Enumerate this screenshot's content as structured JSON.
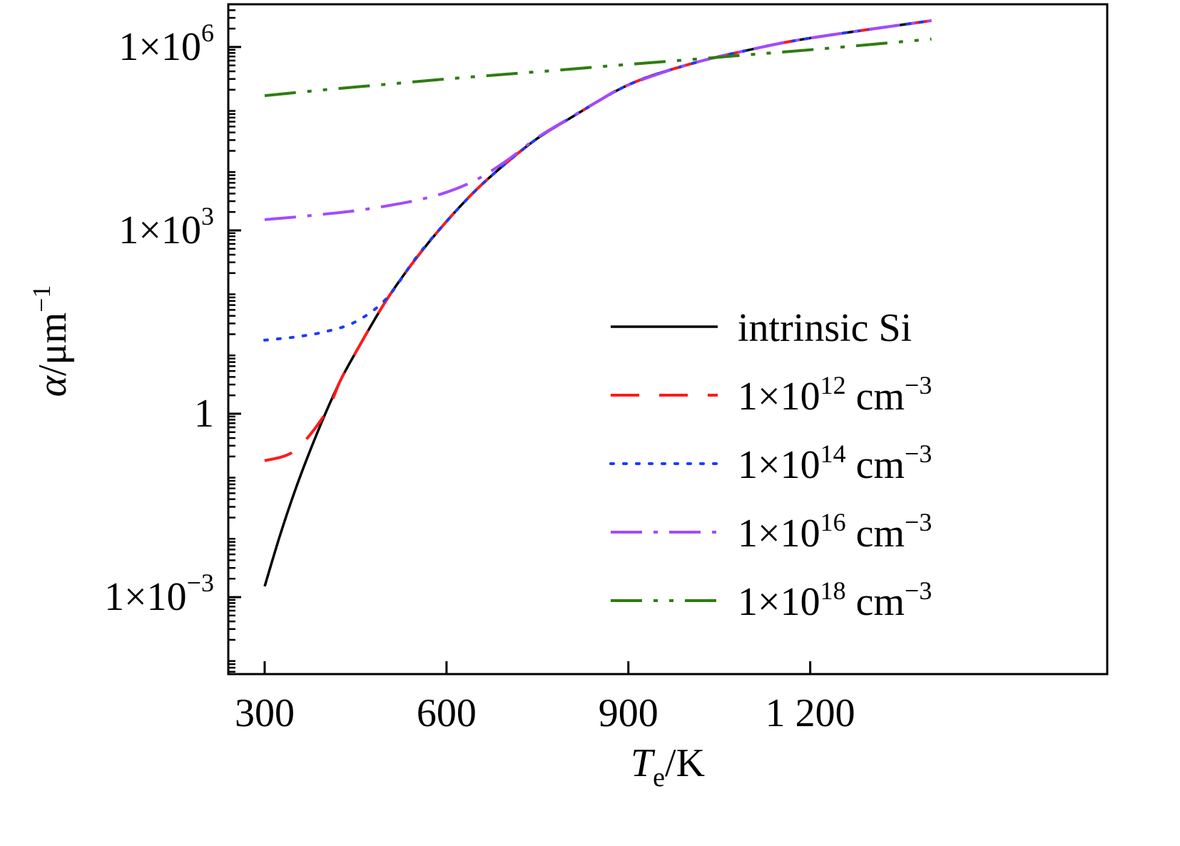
{
  "chart_data": {
    "type": "line",
    "title": "",
    "xlabel": {
      "main": "T",
      "sub": "e",
      "rest": "/K"
    },
    "ylabel": {
      "sym": "α",
      "unit": "/μm",
      "sup": "−1"
    },
    "x_scale": "linear",
    "y_scale": "log",
    "xlim": [
      240,
      1690
    ],
    "ylim": [
      5.5e-05,
      5000000
    ],
    "x_ticks": [
      {
        "value": 300,
        "label": "300"
      },
      {
        "value": 600,
        "label": "600"
      },
      {
        "value": 900,
        "label": "900"
      },
      {
        "value": 1200,
        "label": "1 200"
      }
    ],
    "y_ticks": [
      {
        "value": 0.001,
        "base": "1×10",
        "exp": "−3"
      },
      {
        "value": 1,
        "base": "1",
        "exp": ""
      },
      {
        "value": 1000,
        "base": "1×10",
        "exp": "3"
      },
      {
        "value": 1000000,
        "base": "1×10",
        "exp": "6"
      }
    ],
    "grid": false,
    "legend_position": "center-right",
    "series": [
      {
        "name": "intrinsic Si",
        "color": "#000000",
        "dash": "solid",
        "x": [
          300,
          325,
          350,
          375,
          400,
          425,
          450,
          500,
          550,
          600,
          650,
          700,
          750,
          800,
          900,
          1000,
          1100,
          1200,
          1400
        ],
        "y": [
          0.0015,
          0.01,
          0.055,
          0.25,
          1.0,
          3.5,
          10,
          70,
          350,
          1400,
          4700,
          13000,
          32000,
          65000,
          240000,
          520000,
          900000,
          1400000,
          2700000
        ]
      },
      {
        "name": "1×10¹² cm⁻³",
        "sup": "12",
        "color": "#ff1a1a",
        "dash": "dashed",
        "x": [
          300,
          350,
          400,
          425,
          450,
          500,
          550,
          600,
          650,
          700,
          750,
          800,
          900,
          1000,
          1100,
          1200,
          1400
        ],
        "y": [
          0.17,
          0.25,
          1.0,
          3.5,
          10,
          70,
          350,
          1400,
          4700,
          13000,
          32000,
          65000,
          240000,
          520000,
          900000,
          1400000,
          2700000
        ]
      },
      {
        "name": "1×10¹⁴ cm⁻³",
        "sup": "14",
        "color": "#1a3bff",
        "dash": "dotted",
        "x": [
          300,
          350,
          400,
          450,
          500,
          550,
          600,
          650,
          700,
          750,
          800,
          900,
          1000,
          1100,
          1200,
          1400
        ],
        "y": [
          16,
          18,
          22,
          32,
          75,
          360,
          1400,
          4700,
          13000,
          32000,
          65000,
          240000,
          520000,
          900000,
          1400000,
          2700000
        ]
      },
      {
        "name": "1×10¹⁶ cm⁻³",
        "sup": "16",
        "color": "#a24bff",
        "dash": "dashdot",
        "x": [
          300,
          350,
          400,
          450,
          500,
          550,
          600,
          650,
          700,
          750,
          800,
          850,
          900,
          1000,
          1100,
          1200,
          1400
        ],
        "y": [
          1500,
          1650,
          1850,
          2100,
          2500,
          3100,
          4200,
          6800,
          14000,
          33000,
          66000,
          130000,
          240000,
          520000,
          900000,
          1400000,
          2700000
        ]
      },
      {
        "name": "1×10¹⁸ cm⁻³",
        "sup": "18",
        "color": "#2e7d0e",
        "dash": "dashdotdot",
        "x": [
          300,
          400,
          500,
          600,
          700,
          800,
          900,
          1000,
          1100,
          1200,
          1300,
          1400
        ],
        "y": [
          160000,
          200000,
          245000,
          300000,
          360000,
          430000,
          520000,
          620000,
          750000,
          900000,
          1100000,
          1350000
        ]
      }
    ],
    "legend": [
      {
        "base": "intrinsic Si",
        "sup": "",
        "tail": ""
      },
      {
        "base": "1×10",
        "sup": "12",
        "tail": " cm",
        "tailsup": "−3"
      },
      {
        "base": "1×10",
        "sup": "14",
        "tail": " cm",
        "tailsup": "−3"
      },
      {
        "base": "1×10",
        "sup": "16",
        "tail": " cm",
        "tailsup": "−3"
      },
      {
        "base": "1×10",
        "sup": "18",
        "tail": " cm",
        "tailsup": "−3"
      }
    ]
  }
}
